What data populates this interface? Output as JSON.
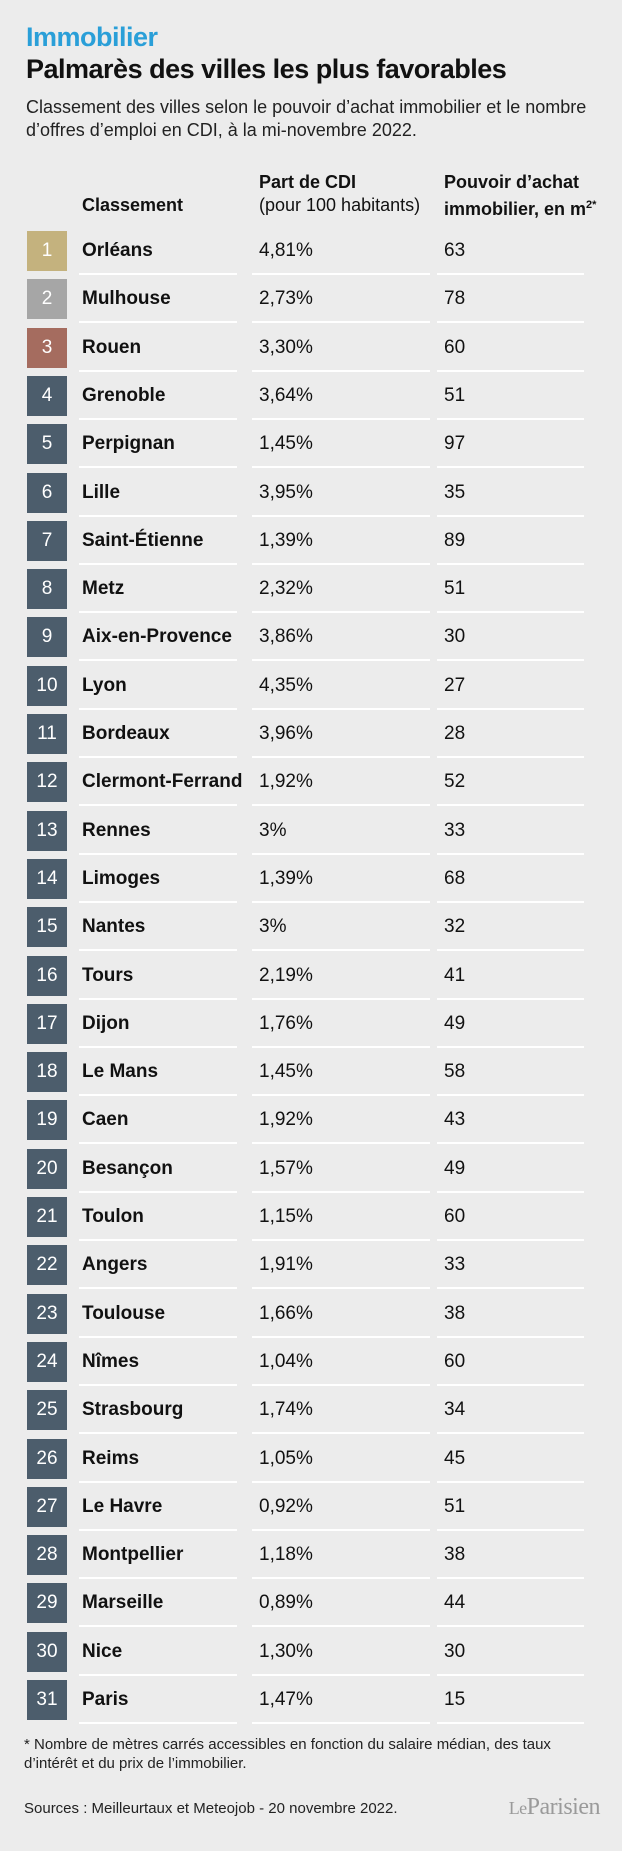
{
  "header": {
    "kicker": "Immobilier",
    "title": "Palmarès des villes les plus favorables",
    "subtitle": "Classement des villes selon le pouvoir d’achat immobilier et le nombre d’offres d’emploi en CDI, à la mi-novembre 2022."
  },
  "chart_data": {
    "type": "table",
    "columns": {
      "rank": "Classement",
      "cdi_main": "Part de CDI",
      "cdi_sub": "(pour 100 habitants)",
      "power_line1": "Pouvoir d’achat",
      "power_line2": "immobilier, en m",
      "power_sup": "2*"
    },
    "rows": [
      {
        "rank": "1",
        "city": "Orléans",
        "cdi": "4,81%",
        "power": "63"
      },
      {
        "rank": "2",
        "city": "Mulhouse",
        "cdi": "2,73%",
        "power": "78"
      },
      {
        "rank": "3",
        "city": "Rouen",
        "cdi": "3,30%",
        "power": "60"
      },
      {
        "rank": "4",
        "city": "Grenoble",
        "cdi": "3,64%",
        "power": "51"
      },
      {
        "rank": "5",
        "city": "Perpignan",
        "cdi": "1,45%",
        "power": "97"
      },
      {
        "rank": "6",
        "city": "Lille",
        "cdi": "3,95%",
        "power": "35"
      },
      {
        "rank": "7",
        "city": "Saint-Étienne",
        "cdi": "1,39%",
        "power": "89"
      },
      {
        "rank": "8",
        "city": "Metz",
        "cdi": "2,32%",
        "power": "51"
      },
      {
        "rank": "9",
        "city": "Aix-en-Provence",
        "cdi": "3,86%",
        "power": "30"
      },
      {
        "rank": "10",
        "city": "Lyon",
        "cdi": "4,35%",
        "power": "27"
      },
      {
        "rank": "11",
        "city": "Bordeaux",
        "cdi": "3,96%",
        "power": "28"
      },
      {
        "rank": "12",
        "city": "Clermont-Ferrand",
        "cdi": "1,92%",
        "power": "52"
      },
      {
        "rank": "13",
        "city": "Rennes",
        "cdi": "3%",
        "power": "33"
      },
      {
        "rank": "14",
        "city": "Limoges",
        "cdi": "1,39%",
        "power": "68"
      },
      {
        "rank": "15",
        "city": "Nantes",
        "cdi": "3%",
        "power": "32"
      },
      {
        "rank": "16",
        "city": "Tours",
        "cdi": "2,19%",
        "power": "41"
      },
      {
        "rank": "17",
        "city": "Dijon",
        "cdi": "1,76%",
        "power": "49"
      },
      {
        "rank": "18",
        "city": "Le Mans",
        "cdi": "1,45%",
        "power": "58"
      },
      {
        "rank": "19",
        "city": "Caen",
        "cdi": "1,92%",
        "power": "43"
      },
      {
        "rank": "20",
        "city": "Besançon",
        "cdi": "1,57%",
        "power": "49"
      },
      {
        "rank": "21",
        "city": "Toulon",
        "cdi": "1,15%",
        "power": "60"
      },
      {
        "rank": "22",
        "city": "Angers",
        "cdi": "1,91%",
        "power": "33"
      },
      {
        "rank": "23",
        "city": "Toulouse",
        "cdi": "1,66%",
        "power": "38"
      },
      {
        "rank": "24",
        "city": "Nîmes",
        "cdi": "1,04%",
        "power": "60"
      },
      {
        "rank": "25",
        "city": "Strasbourg",
        "cdi": "1,74%",
        "power": "34"
      },
      {
        "rank": "26",
        "city": "Reims",
        "cdi": "1,05%",
        "power": "45"
      },
      {
        "rank": "27",
        "city": "Le Havre",
        "cdi": "0,92%",
        "power": "51"
      },
      {
        "rank": "28",
        "city": "Montpellier",
        "cdi": "1,18%",
        "power": "38"
      },
      {
        "rank": "29",
        "city": "Marseille",
        "cdi": "0,89%",
        "power": "44"
      },
      {
        "rank": "30",
        "city": "Nice",
        "cdi": "1,30%",
        "power": "30"
      },
      {
        "rank": "31",
        "city": "Paris",
        "cdi": "1,47%",
        "power": "15"
      }
    ]
  },
  "colors": {
    "kicker": "#2a9fd8",
    "rank_gold": "#c4b27e",
    "rank_silver": "#a6a6a6",
    "rank_bronze": "#a56c5f",
    "rank_default": "#4c5d6c"
  },
  "footer": {
    "footnote": "* Nombre de mètres carrés accessibles en fonction du salaire médian, des taux d’intérêt et du prix de l’immobilier.",
    "sources": "Sources : Meilleurtaux et Meteojob - 20 novembre 2022.",
    "logo_le": "Le",
    "logo_name": "Parisien"
  }
}
